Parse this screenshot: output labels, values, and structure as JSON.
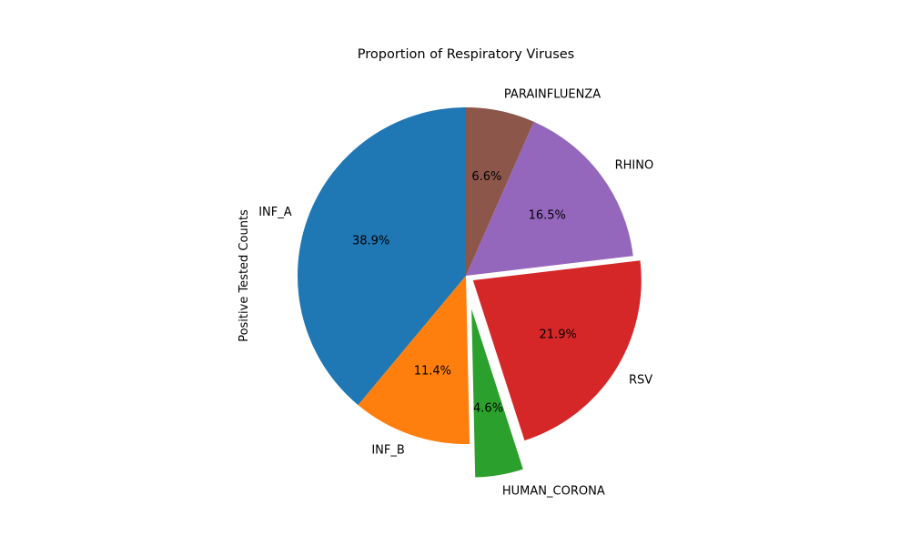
{
  "chart_data": {
    "type": "pie",
    "title": "Proportion of Respiratory Viruses",
    "ylabel": "Positive Tested Counts",
    "slices": [
      {
        "label": "INF_A",
        "percent": 38.9,
        "color": "#1f77b4",
        "explode": 0
      },
      {
        "label": "INF_B",
        "percent": 11.4,
        "color": "#ff7f0e",
        "explode": 0
      },
      {
        "label": "HUMAN_CORONA",
        "percent": 4.6,
        "color": "#2ca02c",
        "explode": 0.2
      },
      {
        "label": "RSV",
        "percent": 21.9,
        "color": "#d62728",
        "explode": 0.05
      },
      {
        "label": "RHINO",
        "percent": 16.5,
        "color": "#9467bd",
        "explode": 0
      },
      {
        "label": "PARAINFLUENZA",
        "percent": 6.6,
        "color": "#8c564b",
        "explode": 0
      }
    ],
    "start_angle": 90,
    "direction": "counterclockwise"
  }
}
